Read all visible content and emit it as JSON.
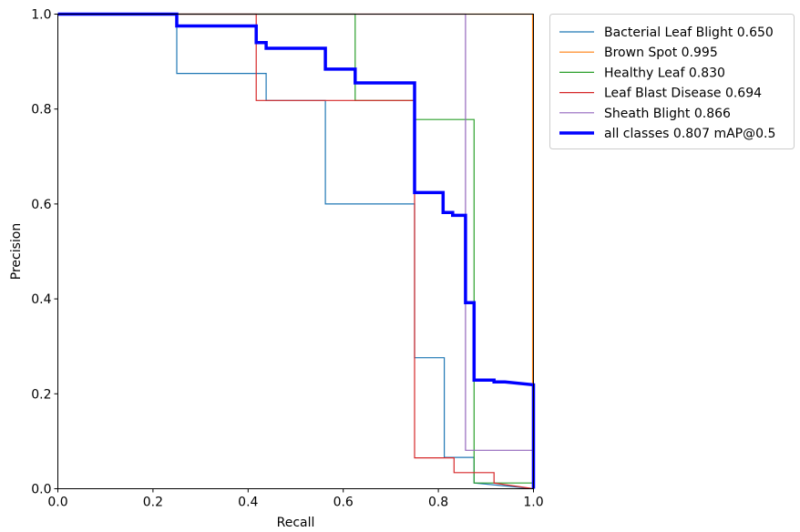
{
  "chart_data": {
    "type": "line",
    "title": "",
    "xlabel": "Recall",
    "ylabel": "Precision",
    "xlim": [
      0,
      1
    ],
    "ylim": [
      0,
      1
    ],
    "x_ticks": [
      "0.0",
      "0.2",
      "0.4",
      "0.6",
      "0.8",
      "1.0"
    ],
    "y_ticks": [
      "0.0",
      "0.2",
      "0.4",
      "0.6",
      "0.8",
      "1.0"
    ],
    "grid": false,
    "legend_position": "outside-top-right",
    "series": [
      {
        "name": "Bacterial Leaf Blight 0.650",
        "color": "#1f77b4",
        "thick": false,
        "points": [
          [
            0,
            1
          ],
          [
            0.25,
            1
          ],
          [
            0.25,
            0.875
          ],
          [
            0.438,
            0.875
          ],
          [
            0.438,
            0.818
          ],
          [
            0.5625,
            0.818
          ],
          [
            0.5625,
            0.6
          ],
          [
            0.75,
            0.6
          ],
          [
            0.75,
            0.276
          ],
          [
            0.8125,
            0.276
          ],
          [
            0.8125,
            0.066
          ],
          [
            0.875,
            0.066
          ],
          [
            0.875,
            0.012
          ],
          [
            0.94,
            0.006
          ],
          [
            1.0,
            0.0
          ]
        ]
      },
      {
        "name": "Brown Spot 0.995",
        "color": "#ff7f0e",
        "thick": false,
        "points": [
          [
            0,
            1
          ],
          [
            0.998,
            1
          ],
          [
            0.998,
            0.0
          ]
        ]
      },
      {
        "name": "Healthy Leaf 0.830",
        "color": "#2ca02c",
        "thick": false,
        "points": [
          [
            0,
            1
          ],
          [
            0.625,
            1
          ],
          [
            0.625,
            0.818
          ],
          [
            0.75,
            0.818
          ],
          [
            0.75,
            0.778
          ],
          [
            0.875,
            0.778
          ],
          [
            0.875,
            0.012
          ],
          [
            1.0,
            0.012
          ],
          [
            1.0,
            0.0
          ]
        ]
      },
      {
        "name": "Leaf Blast Disease 0.694",
        "color": "#d62728",
        "thick": false,
        "points": [
          [
            0,
            1
          ],
          [
            0.417,
            1
          ],
          [
            0.417,
            0.818
          ],
          [
            0.75,
            0.818
          ],
          [
            0.75,
            0.065
          ],
          [
            0.833,
            0.065
          ],
          [
            0.833,
            0.034
          ],
          [
            0.917,
            0.034
          ],
          [
            0.917,
            0.012
          ],
          [
            1.0,
            0.0
          ]
        ]
      },
      {
        "name": "Sheath Blight 0.866",
        "color": "#9467bd",
        "thick": false,
        "points": [
          [
            0,
            1
          ],
          [
            0.857,
            1
          ],
          [
            0.857,
            0.081
          ],
          [
            1.0,
            0.081
          ],
          [
            1.0,
            0.0
          ]
        ]
      },
      {
        "name": "all classes 0.807 mAP@0.5",
        "color": "#0000ff",
        "thick": true,
        "points": [
          [
            0,
            1
          ],
          [
            0.25,
            1
          ],
          [
            0.25,
            0.975
          ],
          [
            0.417,
            0.975
          ],
          [
            0.417,
            0.94
          ],
          [
            0.438,
            0.94
          ],
          [
            0.438,
            0.928
          ],
          [
            0.5625,
            0.928
          ],
          [
            0.5625,
            0.884
          ],
          [
            0.625,
            0.884
          ],
          [
            0.625,
            0.855
          ],
          [
            0.75,
            0.855
          ],
          [
            0.75,
            0.624
          ],
          [
            0.81,
            0.624
          ],
          [
            0.81,
            0.582
          ],
          [
            0.83,
            0.582
          ],
          [
            0.83,
            0.576
          ],
          [
            0.857,
            0.576
          ],
          [
            0.857,
            0.392
          ],
          [
            0.875,
            0.392
          ],
          [
            0.875,
            0.229
          ],
          [
            0.917,
            0.229
          ],
          [
            0.917,
            0.225
          ],
          [
            0.94,
            0.225
          ],
          [
            1.0,
            0.219
          ],
          [
            1.0,
            0.0
          ]
        ]
      }
    ]
  }
}
